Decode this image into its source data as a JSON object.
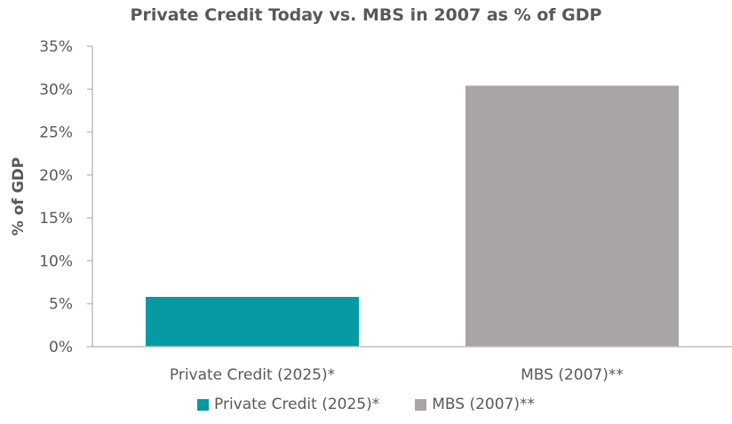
{
  "chart_data": {
    "type": "bar",
    "title": "Private Credit Today vs. MBS in 2007 as % of GDP",
    "xlabel": "",
    "ylabel": "% of GDP",
    "categories": [
      "Private Credit (2025)*",
      "MBS (2007)**"
    ],
    "values": [
      5.8,
      30.4
    ],
    "colors": [
      "#069aa3",
      "#a9a5a4"
    ],
    "ylim": [
      0,
      35
    ],
    "yticks": [
      0,
      5,
      10,
      15,
      20,
      25,
      30,
      35
    ],
    "ytick_labels": [
      "0%",
      "5%",
      "10%",
      "15%",
      "20%",
      "25%",
      "30%",
      "35%"
    ],
    "grid": false,
    "legend": {
      "placement": "bottom",
      "entries": [
        "Private Credit (2025)*",
        "MBS (2007)**"
      ]
    }
  }
}
